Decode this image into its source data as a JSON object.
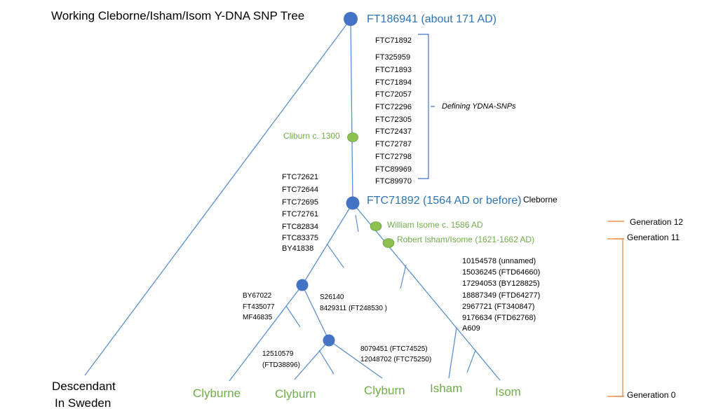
{
  "title": "Working Cleborne/Isham/Isom Y-DNA SNP Tree",
  "colors": {
    "line": "#5b8fd0",
    "major_node": "#4472c4",
    "minor_node": "#8cc152",
    "major_label": "#2e75b6",
    "minor_label": "#70ad47",
    "generation_bracket": "#ed7d31",
    "text": "#000000"
  },
  "nodes": {
    "root": {
      "label": "FT186941 (about 171 AD)"
    },
    "cliburn": {
      "label": "Cliburn c. 1300"
    },
    "ftc71892": {
      "label": "FTC71892 (1564 AD or before)",
      "side_label": "Cleborne"
    },
    "william": {
      "label": "William Isome c. 1586 AD"
    },
    "robert": {
      "label": "Robert Isham/Isome (1621-1662 AD)"
    }
  },
  "defining_snps": {
    "items": [
      "FTC71892",
      "FT325959",
      "FTC71893",
      "FTC71894",
      "FTC72057",
      "FTC72296",
      "FTC72305",
      "FTC72437",
      "FTC72787",
      "FTC72798",
      "FTC89969",
      "FTC89970"
    ],
    "bracket_label": "Defining YDNA-SNPs"
  },
  "left_snps": [
    "FTC72621",
    "FTC72644",
    "FTC72695",
    "FTC72761",
    "FTC82834",
    "FTC83375",
    "BY41838"
  ],
  "by67022_snps": [
    "BY67022",
    "FT435077",
    "MF46835"
  ],
  "s26140_snps": [
    "S26140",
    "8429311 (FT248530 )"
  ],
  "snps_12510579": [
    "12510579",
    "(FTD38896)"
  ],
  "snps_8079451": [
    "8079451 (FTC74525)",
    "12048702 (FTC75250)"
  ],
  "isom_snps": [
    "10154578 (unnamed)",
    "15036245  (FTD64660)",
    "17294053 (BY128825)",
    "18887349 (FTD64277)",
    "2967721 (FT340847)",
    "9176634 (FTD62768)",
    "A609"
  ],
  "leaves": {
    "sweden": [
      "Descendant",
      "In Sweden"
    ],
    "clyburne": "Clyburne",
    "clyburn1": "Clyburn",
    "clyburn2": "Clyburn",
    "isham": "Isham",
    "isom": "Isom"
  },
  "generations": {
    "g12": "Generation 12",
    "g11": "Generation 11",
    "g0": "Generation 0"
  }
}
